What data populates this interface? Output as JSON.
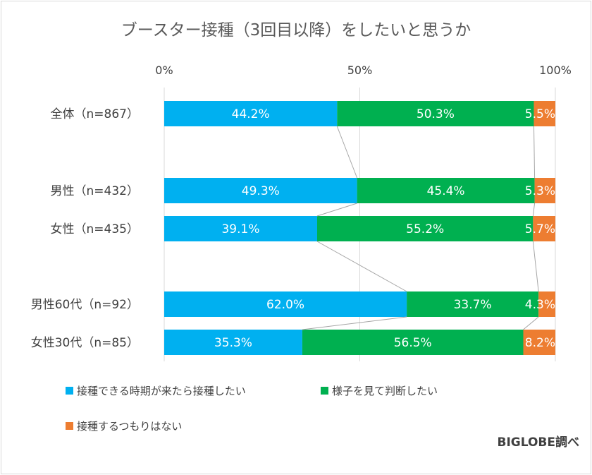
{
  "chart_data": {
    "type": "bar",
    "orientation": "horizontal",
    "stacked": true,
    "title": "ブースター接種（3回目以降）をしたいと思うか",
    "xlim": [
      0,
      100
    ],
    "xticks": [
      "0%",
      "50%",
      "100%"
    ],
    "grid": true,
    "legend_position": "bottom",
    "categories": [
      "全体（n=867）",
      "男性（n=432）",
      "女性（n=435）",
      "男性60代（n=92）",
      "女性30代（n=85）"
    ],
    "series": [
      {
        "name": "接種できる時期が来たら接種したい",
        "color": "#00b0f0",
        "values": [
          44.2,
          49.3,
          39.1,
          62.0,
          35.3
        ],
        "labels": [
          "44.2%",
          "49.3%",
          "39.1%",
          "62.0%",
          "35.3%"
        ]
      },
      {
        "name": "様子を見て判断したい",
        "color": "#00b050",
        "values": [
          50.3,
          45.4,
          55.2,
          33.7,
          56.5
        ],
        "labels": [
          "50.3%",
          "45.4%",
          "55.2%",
          "33.7%",
          "56.5%"
        ]
      },
      {
        "name": "接種するつもりはない",
        "color": "#ed7d31",
        "values": [
          5.5,
          5.3,
          5.7,
          4.3,
          8.2
        ],
        "labels": [
          "5.5%",
          "5.3%",
          "5.7%",
          "4.3%",
          "8.2%"
        ]
      }
    ]
  },
  "credit": "BIGLOBE調べ",
  "colors": {
    "gridline": "#d9d9d9",
    "series_line": "#a6a6a6"
  }
}
